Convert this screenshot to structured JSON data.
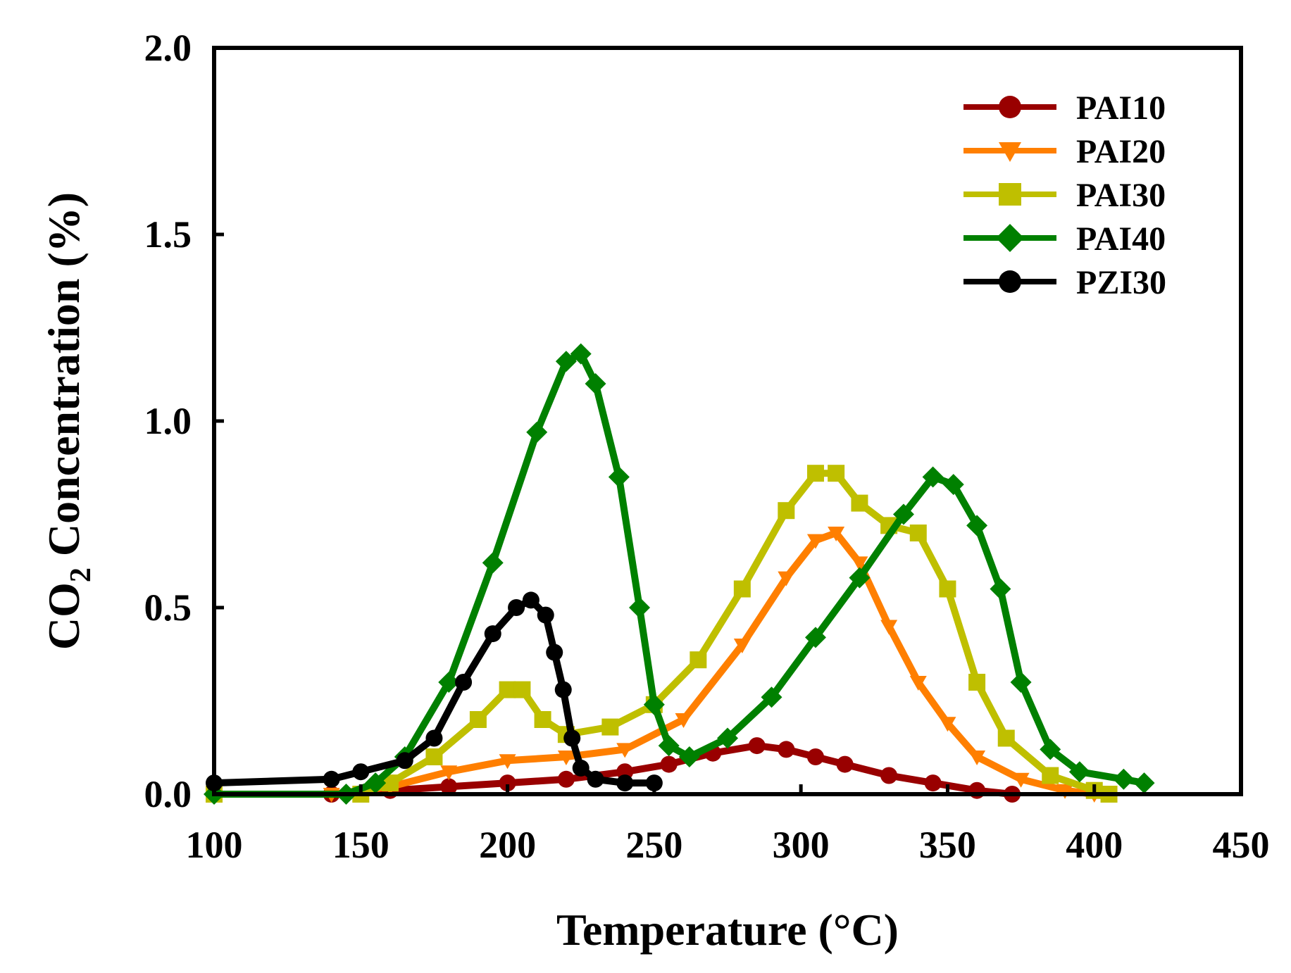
{
  "chart_data": {
    "type": "line",
    "title": "",
    "xlabel": "Temperature (°C)",
    "ylabel": "CO2 Concentration (%)",
    "ylabel_parts": {
      "main": "CO",
      "sub": "2",
      "rest": " Concentration (%)"
    },
    "xlim": [
      100,
      450
    ],
    "ylim": [
      0.0,
      2.0
    ],
    "x_ticks": [
      100,
      150,
      200,
      250,
      300,
      350,
      400,
      450
    ],
    "x_tick_labels": [
      "100",
      "150",
      "200",
      "250",
      "300",
      "350",
      "400",
      "450"
    ],
    "y_ticks": [
      0.0,
      0.5,
      1.0,
      1.5,
      2.0
    ],
    "y_tick_labels": [
      "0.0",
      "0.5",
      "1.0",
      "1.5",
      "2.0"
    ],
    "grid": false,
    "legend_position": "top-right",
    "series": [
      {
        "name": "PAI10",
        "color": "#990000",
        "marker": "circle",
        "points": [
          [
            100,
            0.0
          ],
          [
            140,
            0.0
          ],
          [
            160,
            0.01
          ],
          [
            180,
            0.02
          ],
          [
            200,
            0.03
          ],
          [
            220,
            0.04
          ],
          [
            240,
            0.06
          ],
          [
            255,
            0.08
          ],
          [
            270,
            0.11
          ],
          [
            285,
            0.13
          ],
          [
            295,
            0.12
          ],
          [
            305,
            0.1
          ],
          [
            315,
            0.08
          ],
          [
            330,
            0.05
          ],
          [
            345,
            0.03
          ],
          [
            360,
            0.01
          ],
          [
            372,
            0.0
          ]
        ]
      },
      {
        "name": "PAI20",
        "color": "#FF7F00",
        "marker": "triangle-down",
        "points": [
          [
            100,
            0.0
          ],
          [
            140,
            0.0
          ],
          [
            160,
            0.02
          ],
          [
            180,
            0.06
          ],
          [
            200,
            0.09
          ],
          [
            220,
            0.1
          ],
          [
            240,
            0.12
          ],
          [
            260,
            0.2
          ],
          [
            280,
            0.4
          ],
          [
            295,
            0.58
          ],
          [
            305,
            0.68
          ],
          [
            312,
            0.7
          ],
          [
            320,
            0.62
          ],
          [
            330,
            0.45
          ],
          [
            340,
            0.3
          ],
          [
            350,
            0.19
          ],
          [
            360,
            0.1
          ],
          [
            375,
            0.04
          ],
          [
            390,
            0.01
          ],
          [
            400,
            0.0
          ]
        ]
      },
      {
        "name": "PAI30",
        "color": "#BFBF00",
        "marker": "square",
        "points": [
          [
            100,
            0.0
          ],
          [
            150,
            0.0
          ],
          [
            160,
            0.03
          ],
          [
            175,
            0.1
          ],
          [
            190,
            0.2
          ],
          [
            200,
            0.28
          ],
          [
            205,
            0.28
          ],
          [
            212,
            0.2
          ],
          [
            220,
            0.16
          ],
          [
            235,
            0.18
          ],
          [
            250,
            0.24
          ],
          [
            265,
            0.36
          ],
          [
            280,
            0.55
          ],
          [
            295,
            0.76
          ],
          [
            305,
            0.86
          ],
          [
            312,
            0.86
          ],
          [
            320,
            0.78
          ],
          [
            330,
            0.72
          ],
          [
            340,
            0.7
          ],
          [
            350,
            0.55
          ],
          [
            360,
            0.3
          ],
          [
            370,
            0.15
          ],
          [
            385,
            0.05
          ],
          [
            400,
            0.01
          ],
          [
            405,
            0.0
          ]
        ]
      },
      {
        "name": "PAI40",
        "color": "#008000",
        "marker": "diamond",
        "points": [
          [
            100,
            0.0
          ],
          [
            145,
            0.0
          ],
          [
            155,
            0.03
          ],
          [
            165,
            0.1
          ],
          [
            180,
            0.3
          ],
          [
            195,
            0.62
          ],
          [
            210,
            0.97
          ],
          [
            220,
            1.16
          ],
          [
            225,
            1.18
          ],
          [
            230,
            1.1
          ],
          [
            238,
            0.85
          ],
          [
            245,
            0.5
          ],
          [
            250,
            0.24
          ],
          [
            255,
            0.13
          ],
          [
            262,
            0.1
          ],
          [
            275,
            0.15
          ],
          [
            290,
            0.26
          ],
          [
            305,
            0.42
          ],
          [
            320,
            0.58
          ],
          [
            335,
            0.75
          ],
          [
            345,
            0.85
          ],
          [
            352,
            0.83
          ],
          [
            360,
            0.72
          ],
          [
            368,
            0.55
          ],
          [
            375,
            0.3
          ],
          [
            385,
            0.12
          ],
          [
            395,
            0.06
          ],
          [
            410,
            0.04
          ],
          [
            417,
            0.03
          ]
        ]
      },
      {
        "name": "PZI30",
        "color": "#000000",
        "marker": "circle",
        "points": [
          [
            100,
            0.03
          ],
          [
            140,
            0.04
          ],
          [
            150,
            0.06
          ],
          [
            165,
            0.09
          ],
          [
            175,
            0.15
          ],
          [
            185,
            0.3
          ],
          [
            195,
            0.43
          ],
          [
            203,
            0.5
          ],
          [
            208,
            0.52
          ],
          [
            213,
            0.48
          ],
          [
            216,
            0.38
          ],
          [
            219,
            0.28
          ],
          [
            222,
            0.15
          ],
          [
            225,
            0.07
          ],
          [
            230,
            0.04
          ],
          [
            240,
            0.03
          ],
          [
            250,
            0.03
          ]
        ]
      }
    ]
  }
}
